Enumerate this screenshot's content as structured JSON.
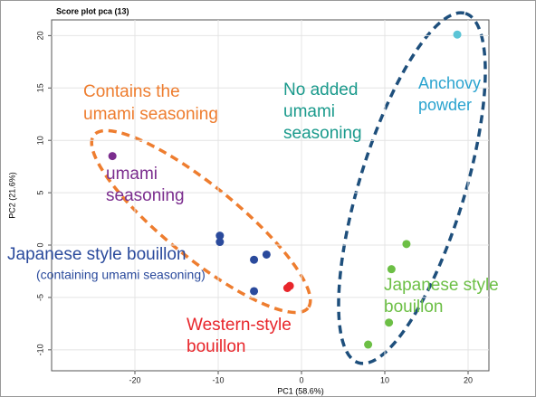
{
  "chart_data": {
    "type": "scatter",
    "title": "Score plot pca (13)",
    "x_label": "PC1 (58.6%)",
    "y_label": "PC2 (21.6%)",
    "xlim": [
      -30,
      22.5
    ],
    "ylim": [
      -12,
      21.5
    ],
    "xticks": [
      -20,
      -10,
      0,
      10,
      20
    ],
    "yticks": [
      -10,
      -5,
      0,
      5,
      10,
      15,
      20
    ],
    "grid": true,
    "series": [
      {
        "color": "#7b2d8e",
        "x": [
          -22.7
        ],
        "y": [
          8.5
        ]
      },
      {
        "color": "#2a4a9c",
        "x": [
          -9.8,
          -9.8,
          -4.2,
          -5.7,
          -5.7
        ],
        "y": [
          0.9,
          0.3,
          -0.9,
          -1.4,
          -4.4
        ]
      },
      {
        "color": "#e8262b",
        "x": [
          -1.7,
          -1.4
        ],
        "y": [
          -4.1,
          -3.9
        ]
      },
      {
        "color": "#6cbf45",
        "x": [
          12.6,
          10.8,
          10.5,
          8.0
        ],
        "y": [
          0.1,
          -2.3,
          -7.4,
          -9.5
        ]
      },
      {
        "color": "#5bc4d6",
        "x": [
          18.7
        ],
        "y": [
          20.1
        ]
      }
    ],
    "annotations": [
      {
        "color": "#ee7d2f",
        "lines": [
          "Contains the",
          "umami seasoning"
        ]
      },
      {
        "color": "#1a9a8c",
        "lines": [
          "No added",
          "umami",
          "seasoning"
        ]
      },
      {
        "color": "#2aa3cf",
        "lines": [
          "Anchovy",
          "powder"
        ]
      },
      {
        "color": "#7b2d8e",
        "lines": [
          "umami",
          "seasoning"
        ]
      },
      {
        "color": "#2a4a9c",
        "lines": [
          "Japanese style bouillon",
          "(containing umami seasoning)"
        ]
      },
      {
        "color": "#e8262b",
        "lines": [
          "Western-style",
          "bouillon"
        ]
      },
      {
        "color": "#6cbf45",
        "lines": [
          "Japanese style",
          "bouillon"
        ]
      }
    ]
  }
}
